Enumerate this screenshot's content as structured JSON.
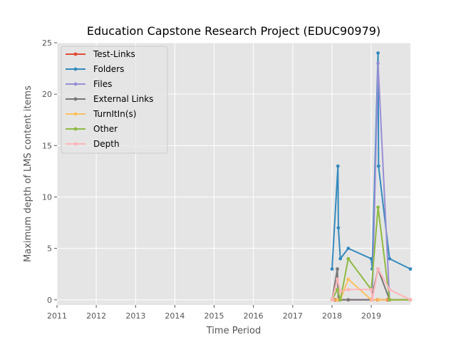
{
  "chart_data": {
    "type": "line",
    "title": "Education Capstone Research Project (EDUC90979)",
    "xlabel": "Time Period",
    "ylabel": "Maximum depth of LMS content items",
    "xlim": [
      "2011-01-01",
      "2019-12-31"
    ],
    "ylim": [
      -0.5,
      25
    ],
    "x_ticks": [
      "2011",
      "2012",
      "2013",
      "2014",
      "2015",
      "2016",
      "2017",
      "2018",
      "2019"
    ],
    "y_ticks": [
      0,
      5,
      10,
      15,
      20,
      25
    ],
    "grid": true,
    "legend_position": "top-left",
    "series": [
      {
        "name": "Test-Links",
        "color": "#E24A33",
        "points": [
          [
            "2018-01-01",
            0
          ],
          [
            "2018-02-01",
            0
          ],
          [
            "2018-03-01",
            0
          ],
          [
            "2018-06-01",
            0
          ],
          [
            "2019-01-01",
            0
          ],
          [
            "2019-03-01",
            0
          ],
          [
            "2019-06-01",
            0
          ],
          [
            "2019-12-31",
            0
          ]
        ]
      },
      {
        "name": "Folders",
        "color": "#348ABD",
        "points": [
          [
            "2018-01-01",
            3
          ],
          [
            "2018-02-25",
            13
          ],
          [
            "2018-03-01",
            7
          ],
          [
            "2018-03-20",
            4
          ],
          [
            "2018-06-01",
            5
          ],
          [
            "2019-01-01",
            4
          ],
          [
            "2019-01-10",
            3
          ],
          [
            "2019-03-05",
            24
          ],
          [
            "2019-03-10",
            13
          ],
          [
            "2019-06-20",
            4
          ],
          [
            "2019-12-31",
            3
          ]
        ]
      },
      {
        "name": "Files",
        "color": "#988ED5",
        "points": [
          [
            "2018-01-01",
            0
          ],
          [
            "2018-03-01",
            0
          ],
          [
            "2019-01-10",
            0
          ],
          [
            "2019-03-05",
            23
          ],
          [
            "2019-06-20",
            0
          ],
          [
            "2019-12-31",
            0
          ]
        ]
      },
      {
        "name": "External Links",
        "color": "#777777",
        "points": [
          [
            "2018-01-01",
            0
          ],
          [
            "2018-02-20",
            3
          ],
          [
            "2018-03-01",
            0
          ],
          [
            "2018-06-01",
            0
          ],
          [
            "2019-01-01",
            0
          ],
          [
            "2019-03-05",
            3
          ],
          [
            "2019-06-20",
            0
          ],
          [
            "2019-12-31",
            0
          ]
        ]
      },
      {
        "name": "TurnItIn(s)",
        "color": "#FBC15E",
        "points": [
          [
            "2018-01-01",
            0
          ],
          [
            "2018-02-20",
            0
          ],
          [
            "2018-03-20",
            0
          ],
          [
            "2018-06-01",
            2
          ],
          [
            "2019-01-01",
            0
          ],
          [
            "2019-03-10",
            0
          ],
          [
            "2019-06-20",
            0
          ],
          [
            "2019-12-31",
            0
          ]
        ]
      },
      {
        "name": "Other",
        "color": "#8EBA42",
        "points": [
          [
            "2018-01-01",
            0
          ],
          [
            "2018-02-20",
            1
          ],
          [
            "2018-03-20",
            0
          ],
          [
            "2018-06-01",
            4
          ],
          [
            "2019-01-01",
            1
          ],
          [
            "2019-03-05",
            9
          ],
          [
            "2019-06-20",
            0
          ],
          [
            "2019-12-31",
            0
          ]
        ]
      },
      {
        "name": "Depth",
        "color": "#FFB5B8",
        "points": [
          [
            "2018-01-01",
            0
          ],
          [
            "2018-02-20",
            2
          ],
          [
            "2018-03-20",
            0.8
          ],
          [
            "2018-06-01",
            1
          ],
          [
            "2019-01-01",
            1
          ],
          [
            "2019-01-10",
            0
          ],
          [
            "2019-03-05",
            3
          ],
          [
            "2019-06-20",
            1
          ],
          [
            "2019-12-31",
            0
          ]
        ]
      }
    ]
  }
}
